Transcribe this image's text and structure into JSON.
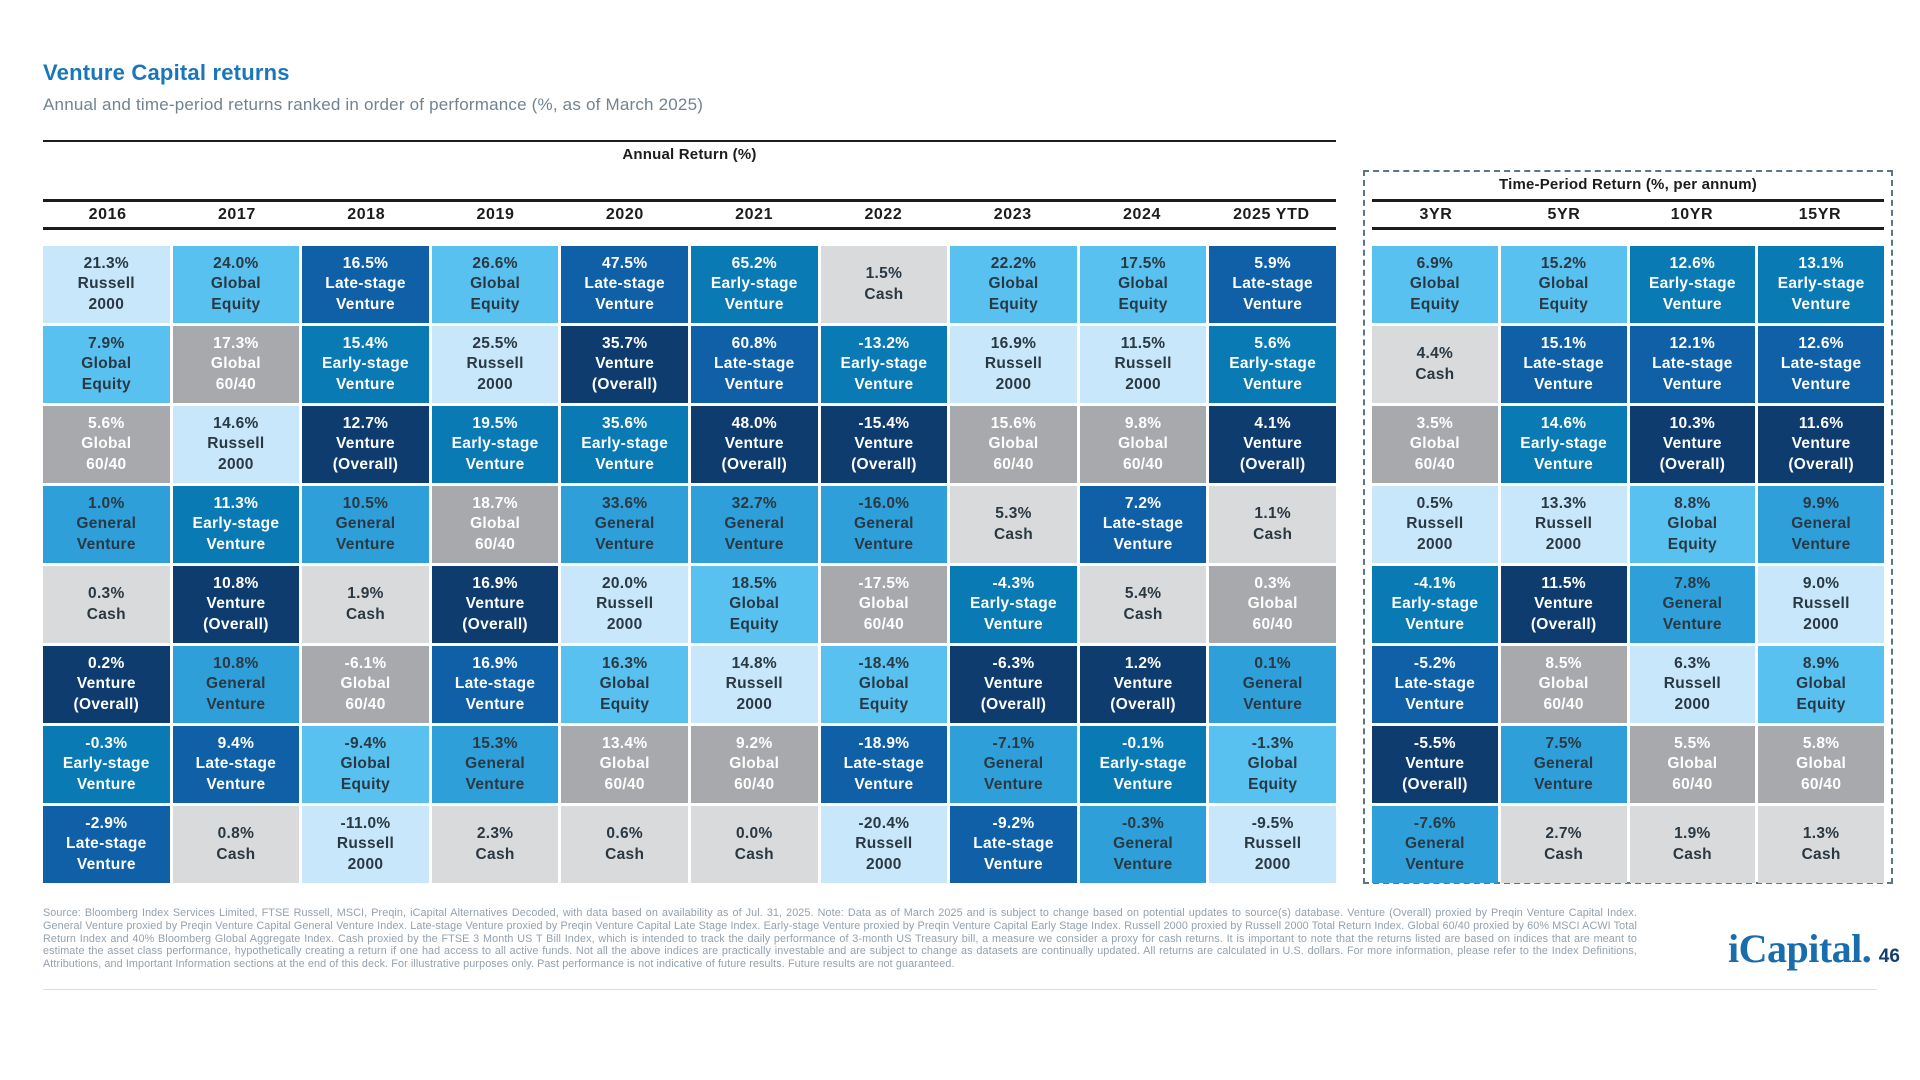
{
  "header": {
    "title": "Venture Capital returns",
    "subtitle": "Annual and time-period returns ranked in order of performance (%, as of March 2025)"
  },
  "table": {
    "annual_title": "Annual Return (%)",
    "period_title": "Time-Period Return (%, per annum)"
  },
  "chart_data": {
    "type": "table",
    "title": "Venture Capital returns",
    "subtitle": "Annual and time-period returns ranked in order of performance (%, as of March 2025)",
    "unit": "percent",
    "asset_classes": {
      "russell2000": {
        "label": "Russell\n2000",
        "bg": "#c8e7fa",
        "fg": "#293842"
      },
      "globalEquity": {
        "label": "Global\nEquity",
        "bg": "#58c1f0",
        "fg": "#293842"
      },
      "global6040": {
        "label": "Global\n60/40",
        "bg": "#a7a9ac",
        "fg": "#ffffff"
      },
      "generalVenture": {
        "label": "General\nVenture",
        "bg": "#2e9fd9",
        "fg": "#293842"
      },
      "cash": {
        "label": "Cash",
        "bg": "#d9dadc",
        "fg": "#293842"
      },
      "ventureOverall": {
        "label": "Venture\n(Overall)",
        "bg": "#0e3c6e",
        "fg": "#ffffff"
      },
      "earlyStage": {
        "label": "Early-stage\nVenture",
        "bg": "#0a7ab5",
        "fg": "#ffffff"
      },
      "lateStage": {
        "label": "Late-stage\nVenture",
        "bg": "#1060a8",
        "fg": "#ffffff"
      }
    },
    "annual_columns": [
      {
        "label": "2016",
        "cells": [
          {
            "value": "21.3%",
            "asset": "russell2000"
          },
          {
            "value": "7.9%",
            "asset": "globalEquity"
          },
          {
            "value": "5.6%",
            "asset": "global6040"
          },
          {
            "value": "1.0%",
            "asset": "generalVenture"
          },
          {
            "value": "0.3%",
            "asset": "cash"
          },
          {
            "value": "0.2%",
            "asset": "ventureOverall"
          },
          {
            "value": "-0.3%",
            "asset": "earlyStage"
          },
          {
            "value": "-2.9%",
            "asset": "lateStage"
          }
        ]
      },
      {
        "label": "2017",
        "cells": [
          {
            "value": "24.0%",
            "asset": "globalEquity"
          },
          {
            "value": "17.3%",
            "asset": "global6040"
          },
          {
            "value": "14.6%",
            "asset": "russell2000"
          },
          {
            "value": "11.3%",
            "asset": "earlyStage"
          },
          {
            "value": "10.8%",
            "asset": "ventureOverall"
          },
          {
            "value": "10.8%",
            "asset": "generalVenture"
          },
          {
            "value": "9.4%",
            "asset": "lateStage"
          },
          {
            "value": "0.8%",
            "asset": "cash"
          }
        ]
      },
      {
        "label": "2018",
        "cells": [
          {
            "value": "16.5%",
            "asset": "lateStage"
          },
          {
            "value": "15.4%",
            "asset": "earlyStage"
          },
          {
            "value": "12.7%",
            "asset": "ventureOverall"
          },
          {
            "value": "10.5%",
            "asset": "generalVenture"
          },
          {
            "value": "1.9%",
            "asset": "cash"
          },
          {
            "value": "-6.1%",
            "asset": "global6040"
          },
          {
            "value": "-9.4%",
            "asset": "globalEquity"
          },
          {
            "value": "-11.0%",
            "asset": "russell2000"
          }
        ]
      },
      {
        "label": "2019",
        "cells": [
          {
            "value": "26.6%",
            "asset": "globalEquity"
          },
          {
            "value": "25.5%",
            "asset": "russell2000"
          },
          {
            "value": "19.5%",
            "asset": "earlyStage"
          },
          {
            "value": "18.7%",
            "asset": "global6040"
          },
          {
            "value": "16.9%",
            "asset": "ventureOverall"
          },
          {
            "value": "16.9%",
            "asset": "lateStage"
          },
          {
            "value": "15.3%",
            "asset": "generalVenture"
          },
          {
            "value": "2.3%",
            "asset": "cash"
          }
        ]
      },
      {
        "label": "2020",
        "cells": [
          {
            "value": "47.5%",
            "asset": "lateStage"
          },
          {
            "value": "35.7%",
            "asset": "ventureOverall"
          },
          {
            "value": "35.6%",
            "asset": "earlyStage"
          },
          {
            "value": "33.6%",
            "asset": "generalVenture"
          },
          {
            "value": "20.0%",
            "asset": "russell2000"
          },
          {
            "value": "16.3%",
            "asset": "globalEquity"
          },
          {
            "value": "13.4%",
            "asset": "global6040"
          },
          {
            "value": "0.6%",
            "asset": "cash"
          }
        ]
      },
      {
        "label": "2021",
        "cells": [
          {
            "value": "65.2%",
            "asset": "earlyStage"
          },
          {
            "value": "60.8%",
            "asset": "lateStage"
          },
          {
            "value": "48.0%",
            "asset": "ventureOverall"
          },
          {
            "value": "32.7%",
            "asset": "generalVenture"
          },
          {
            "value": "18.5%",
            "asset": "globalEquity"
          },
          {
            "value": "14.8%",
            "asset": "russell2000"
          },
          {
            "value": "9.2%",
            "asset": "global6040"
          },
          {
            "value": "0.0%",
            "asset": "cash"
          }
        ]
      },
      {
        "label": "2022",
        "cells": [
          {
            "value": "1.5%",
            "asset": "cash"
          },
          {
            "value": "-13.2%",
            "asset": "earlyStage"
          },
          {
            "value": "-15.4%",
            "asset": "ventureOverall"
          },
          {
            "value": "-16.0%",
            "asset": "generalVenture"
          },
          {
            "value": "-17.5%",
            "asset": "global6040"
          },
          {
            "value": "-18.4%",
            "asset": "globalEquity"
          },
          {
            "value": "-18.9%",
            "asset": "lateStage"
          },
          {
            "value": "-20.4%",
            "asset": "russell2000"
          }
        ]
      },
      {
        "label": "2023",
        "cells": [
          {
            "value": "22.2%",
            "asset": "globalEquity"
          },
          {
            "value": "16.9%",
            "asset": "russell2000"
          },
          {
            "value": "15.6%",
            "asset": "global6040"
          },
          {
            "value": "5.3%",
            "asset": "cash"
          },
          {
            "value": "-4.3%",
            "asset": "earlyStage"
          },
          {
            "value": "-6.3%",
            "asset": "ventureOverall"
          },
          {
            "value": "-7.1%",
            "asset": "generalVenture"
          },
          {
            "value": "-9.2%",
            "asset": "lateStage"
          }
        ]
      },
      {
        "label": "2024",
        "cells": [
          {
            "value": "17.5%",
            "asset": "globalEquity"
          },
          {
            "value": "11.5%",
            "asset": "russell2000"
          },
          {
            "value": "9.8%",
            "asset": "global6040"
          },
          {
            "value": "7.2%",
            "asset": "lateStage"
          },
          {
            "value": "5.4%",
            "asset": "cash"
          },
          {
            "value": "1.2%",
            "asset": "ventureOverall"
          },
          {
            "value": "-0.1%",
            "asset": "earlyStage"
          },
          {
            "value": "-0.3%",
            "asset": "generalVenture"
          }
        ]
      },
      {
        "label": "2025 YTD",
        "cells": [
          {
            "value": "5.9%",
            "asset": "lateStage"
          },
          {
            "value": "5.6%",
            "asset": "earlyStage"
          },
          {
            "value": "4.1%",
            "asset": "ventureOverall"
          },
          {
            "value": "1.1%",
            "asset": "cash"
          },
          {
            "value": "0.3%",
            "asset": "global6040"
          },
          {
            "value": "0.1%",
            "asset": "generalVenture"
          },
          {
            "value": "-1.3%",
            "asset": "globalEquity"
          },
          {
            "value": "-9.5%",
            "asset": "russell2000"
          }
        ]
      }
    ],
    "period_columns": [
      {
        "label": "3YR",
        "cells": [
          {
            "value": "6.9%",
            "asset": "globalEquity"
          },
          {
            "value": "4.4%",
            "asset": "cash"
          },
          {
            "value": "3.5%",
            "asset": "global6040"
          },
          {
            "value": "0.5%",
            "asset": "russell2000"
          },
          {
            "value": "-4.1%",
            "asset": "earlyStage"
          },
          {
            "value": "-5.2%",
            "asset": "lateStage"
          },
          {
            "value": "-5.5%",
            "asset": "ventureOverall"
          },
          {
            "value": "-7.6%",
            "asset": "generalVenture"
          }
        ]
      },
      {
        "label": "5YR",
        "cells": [
          {
            "value": "15.2%",
            "asset": "globalEquity"
          },
          {
            "value": "15.1%",
            "asset": "lateStage"
          },
          {
            "value": "14.6%",
            "asset": "earlyStage"
          },
          {
            "value": "13.3%",
            "asset": "russell2000"
          },
          {
            "value": "11.5%",
            "asset": "ventureOverall"
          },
          {
            "value": "8.5%",
            "asset": "global6040"
          },
          {
            "value": "7.5%",
            "asset": "generalVenture"
          },
          {
            "value": "2.7%",
            "asset": "cash"
          }
        ]
      },
      {
        "label": "10YR",
        "cells": [
          {
            "value": "12.6%",
            "asset": "earlyStage"
          },
          {
            "value": "12.1%",
            "asset": "lateStage"
          },
          {
            "value": "10.3%",
            "asset": "ventureOverall"
          },
          {
            "value": "8.8%",
            "asset": "globalEquity"
          },
          {
            "value": "7.8%",
            "asset": "generalVenture"
          },
          {
            "value": "6.3%",
            "asset": "russell2000"
          },
          {
            "value": "5.5%",
            "asset": "global6040"
          },
          {
            "value": "1.9%",
            "asset": "cash"
          }
        ]
      },
      {
        "label": "15YR",
        "cells": [
          {
            "value": "13.1%",
            "asset": "earlyStage"
          },
          {
            "value": "12.6%",
            "asset": "lateStage"
          },
          {
            "value": "11.6%",
            "asset": "ventureOverall"
          },
          {
            "value": "9.9%",
            "asset": "generalVenture"
          },
          {
            "value": "9.0%",
            "asset": "russell2000"
          },
          {
            "value": "8.9%",
            "asset": "globalEquity"
          },
          {
            "value": "5.8%",
            "asset": "global6040"
          },
          {
            "value": "1.3%",
            "asset": "cash"
          }
        ]
      }
    ]
  },
  "footer": {
    "note": "Source: Bloomberg Index Services Limited, FTSE Russell, MSCI, Preqin, iCapital Alternatives Decoded, with data based on availability as of Jul. 31, 2025. Note: Data as of March 2025 and is subject to change based on potential updates to source(s) database. Venture (Overall) proxied by Preqin Venture Capital Index. General Venture proxied by Preqin Venture Capital General Venture Index. Late-stage Venture proxied by Preqin Venture Capital Late Stage Index. Early-stage Venture proxied by Preqin Venture Capital Early Stage Index. Russell 2000 proxied by Russell 2000 Total Return Index. Global 60/40 proxied by 60% MSCI ACWI Total Return Index and 40% Bloomberg Global Aggregate Index. Cash proxied by the FTSE 3 Month US T Bill Index, which is intended to track the daily performance of 3-month US Treasury bill, a measure we consider a proxy for cash returns. It is important to note that the returns listed are based on indices that are meant to estimate the asset class performance, hypothetically creating a return if one had access to all active funds. Not all the above indices are practically investable and are subject to change as datasets are continually updated. All returns are calculated in U.S. dollars. For more information, please refer to the Index Definitions, Attributions, and Important Information sections at the end of this deck. For illustrative purposes only. Past performance is not indicative of future results. Future results are not guaranteed.",
    "logo": "iCapital",
    "logo_period": ".",
    "page_number": "46"
  }
}
